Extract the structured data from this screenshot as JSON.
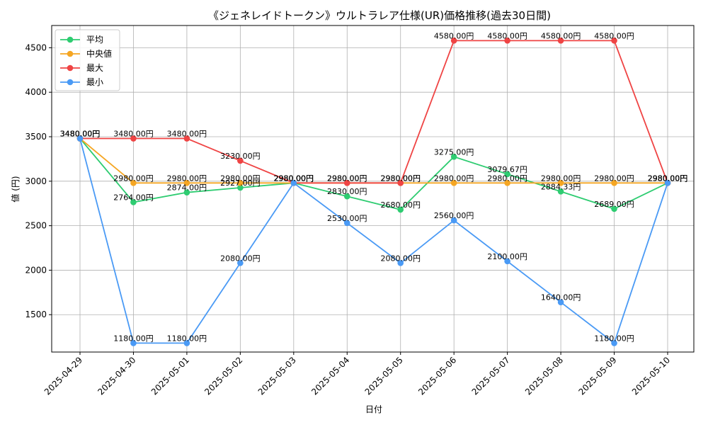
{
  "chart_data": {
    "type": "line",
    "title": "《ジェネレイドトークン》ウルトラレア仕様(UR)価格推移(過去30日間)",
    "xlabel": "日付",
    "ylabel": "値 (円)",
    "x": [
      "2025-04-29",
      "2025-04-30",
      "2025-05-01",
      "2025-05-02",
      "2025-05-03",
      "2025-05-04",
      "2025-05-05",
      "2025-05-06",
      "2025-05-07",
      "2025-05-08",
      "2025-05-09",
      "2025-05-10"
    ],
    "ylim": [
      1080,
      4750
    ],
    "yticks": [
      "1500",
      "2000",
      "2500",
      "3000",
      "3500",
      "4000",
      "4500"
    ],
    "grid": true,
    "legend_position": "top-left",
    "series": [
      {
        "name": "平均",
        "color": "#2ecc71",
        "values": [
          3480,
          2764,
          2874,
          2927,
          2980,
          2830,
          2680,
          3275,
          3079.67,
          2884.33,
          2689,
          2980
        ],
        "labels": [
          "3480.00円",
          "2764.00円",
          "2874.00円",
          "2927.00円",
          "2980.00円",
          "2830.00円",
          "2680.00円",
          "3275.00円",
          "3079.67円",
          "2884.33円",
          "2689.00円",
          "2980.00円"
        ]
      },
      {
        "name": "中央値",
        "color": "#f5a623",
        "values": [
          3480,
          2980,
          2980,
          2980,
          2980,
          2980,
          2980,
          2980,
          2980,
          2980,
          2980,
          2980
        ],
        "labels": [
          "3480.00円",
          "2980.00円",
          "2980.00円",
          "2980.00円",
          "2980.00円",
          "2980.00円",
          "2980.00円",
          "2980.00円",
          "2980.00円",
          "2980.00円",
          "2980.00円",
          "2980.00円"
        ]
      },
      {
        "name": "最大",
        "color": "#ef4444",
        "values": [
          3480,
          3480,
          3480,
          3230,
          2980,
          2980,
          2980,
          4580,
          4580,
          4580,
          4580,
          2980
        ],
        "labels": [
          "3480.00円",
          "3480.00円",
          "3480.00円",
          "3230.00円",
          "2980.00円",
          "2980.00円",
          "2980.00円",
          "4580.00円",
          "4580.00円",
          "4580.00円",
          "4580.00円",
          "2980.00円"
        ]
      },
      {
        "name": "最小",
        "color": "#4a9af5",
        "values": [
          3480,
          1180,
          1180,
          2080,
          2980,
          2530,
          2080,
          2560,
          2100,
          1640,
          1180,
          2980
        ],
        "labels": [
          "3480.00円",
          "1180.00円",
          "1180.00円",
          "2080.00円",
          "2980.00円",
          "2530.00円",
          "2080.00円",
          "2560.00円",
          "2100.00円",
          "1640.00円",
          "1180.00円",
          "2980.00円"
        ]
      }
    ]
  }
}
